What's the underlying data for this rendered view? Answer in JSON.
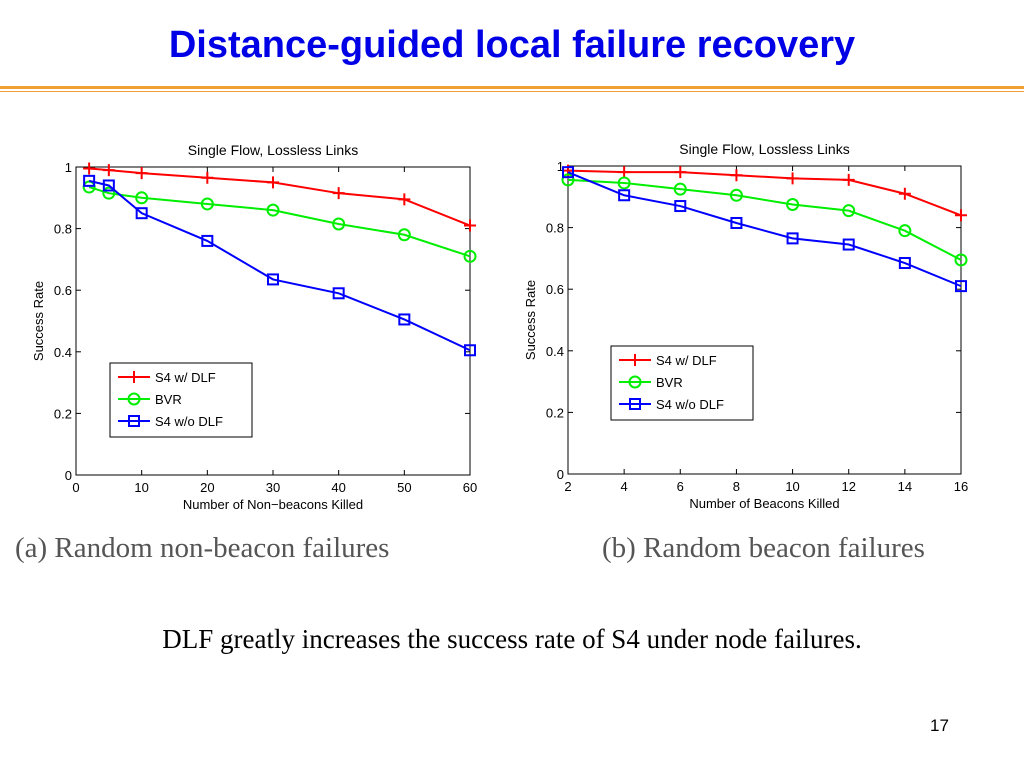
{
  "slide": {
    "title": "Distance-guided local failure recovery",
    "caption_left": "(a) Random non-beacon failures",
    "caption_right": "(b) Random beacon failures",
    "summary": "DLF greatly increases the success rate of S4 under node failures.",
    "page_number": "17",
    "colors": {
      "title": "#0000e6",
      "rule": "#f0a030",
      "caption": "#555555"
    }
  },
  "chart_data": [
    {
      "type": "line",
      "title": "Single Flow, Lossless Links",
      "xlabel": "Number of Non−beacons Killed",
      "ylabel": "Success Rate",
      "xlim": [
        0,
        60
      ],
      "ylim": [
        0,
        1
      ],
      "xticks": [
        0,
        10,
        20,
        30,
        40,
        50,
        60
      ],
      "yticks": [
        0,
        0.2,
        0.4,
        0.6,
        0.8,
        1
      ],
      "ytick_labels": [
        "0",
        "0.2",
        "0.4",
        "0.6",
        "0.8",
        "1"
      ],
      "grid": false,
      "legend_position": "lower-left",
      "series": [
        {
          "name": "S4 w/ DLF",
          "marker": "plus",
          "color": "#ff0000",
          "x": [
            2,
            5,
            10,
            20,
            30,
            40,
            50,
            60
          ],
          "y": [
            0.995,
            0.99,
            0.98,
            0.965,
            0.95,
            0.915,
            0.895,
            0.81
          ]
        },
        {
          "name": "BVR",
          "marker": "circle",
          "color": "#00ee00",
          "x": [
            2,
            5,
            10,
            20,
            30,
            40,
            50,
            60
          ],
          "y": [
            0.935,
            0.915,
            0.9,
            0.88,
            0.86,
            0.815,
            0.78,
            0.71
          ]
        },
        {
          "name": "S4 w/o DLF",
          "marker": "square",
          "color": "#0000ff",
          "x": [
            2,
            5,
            10,
            20,
            30,
            40,
            50,
            60
          ],
          "y": [
            0.955,
            0.94,
            0.85,
            0.76,
            0.635,
            0.59,
            0.505,
            0.405
          ]
        }
      ]
    },
    {
      "type": "line",
      "title": "Single Flow, Lossless Links",
      "xlabel": "Number of Beacons Killed",
      "ylabel": "Success Rate",
      "xlim": [
        2,
        16
      ],
      "ylim": [
        0,
        1
      ],
      "xticks": [
        2,
        4,
        6,
        8,
        10,
        12,
        14,
        16
      ],
      "yticks": [
        0,
        0.2,
        0.4,
        0.6,
        0.8,
        1
      ],
      "ytick_labels": [
        "0",
        "0.2",
        "0.4",
        "0.6",
        "0.8",
        "1"
      ],
      "grid": false,
      "legend_position": "center-left",
      "series": [
        {
          "name": "S4 w/ DLF",
          "marker": "plus",
          "color": "#ff0000",
          "x": [
            2,
            4,
            6,
            8,
            10,
            12,
            14,
            16
          ],
          "y": [
            0.985,
            0.98,
            0.98,
            0.97,
            0.96,
            0.955,
            0.91,
            0.84
          ]
        },
        {
          "name": "BVR",
          "marker": "circle",
          "color": "#00ee00",
          "x": [
            2,
            4,
            6,
            8,
            10,
            12,
            14,
            16
          ],
          "y": [
            0.955,
            0.945,
            0.925,
            0.905,
            0.875,
            0.855,
            0.79,
            0.695
          ]
        },
        {
          "name": "S4 w/o DLF",
          "marker": "square",
          "color": "#0000ff",
          "x": [
            2,
            4,
            6,
            8,
            10,
            12,
            14,
            16
          ],
          "y": [
            0.98,
            0.905,
            0.87,
            0.815,
            0.765,
            0.745,
            0.685,
            0.61
          ]
        }
      ]
    }
  ]
}
